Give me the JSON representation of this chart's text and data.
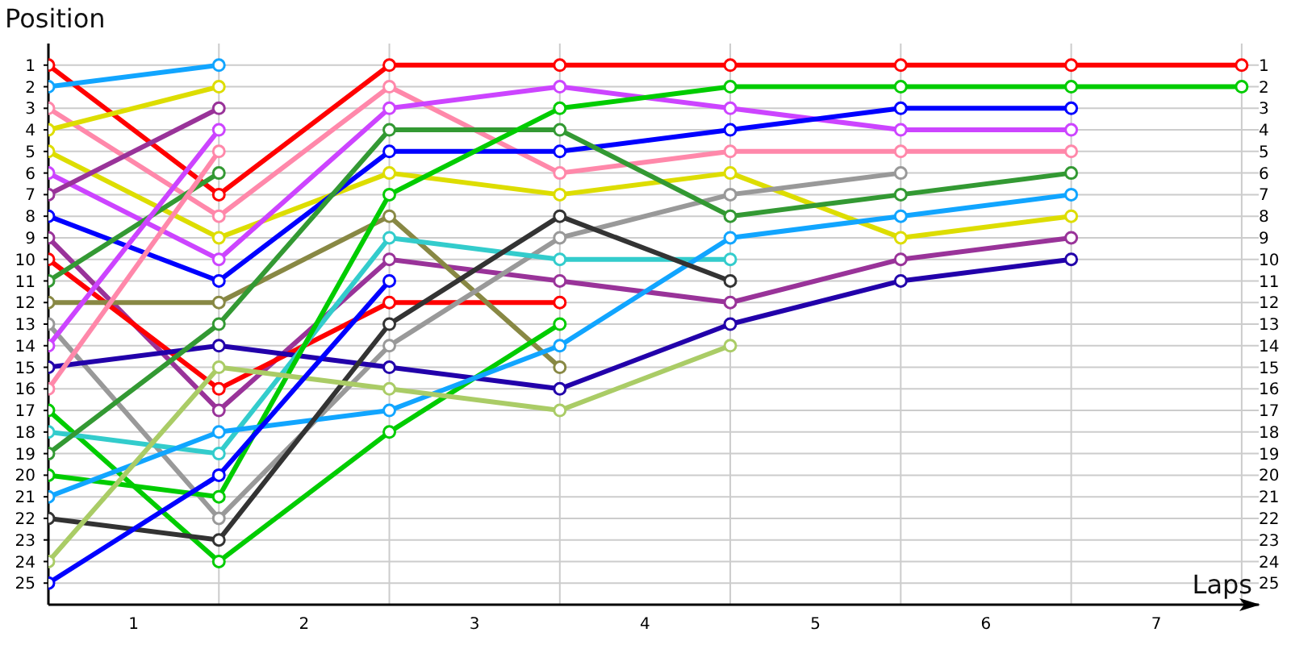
{
  "chart_data": {
    "type": "line",
    "ylabel": "Position",
    "xlabel": "Laps",
    "x": [
      0,
      1,
      2,
      3,
      4,
      5,
      6,
      7
    ],
    "xlim": [
      0,
      7.1
    ],
    "xticks": [
      {
        "value": 0,
        "label": null
      },
      {
        "value": 0.5,
        "label": "1"
      },
      {
        "value": 1,
        "label": null
      },
      {
        "value": 1.5,
        "label": "2"
      },
      {
        "value": 2,
        "label": null
      },
      {
        "value": 2.5,
        "label": "3"
      },
      {
        "value": 3,
        "label": null
      },
      {
        "value": 3.5,
        "label": "4"
      },
      {
        "value": 4,
        "label": null
      },
      {
        "value": 4.5,
        "label": "5"
      },
      {
        "value": 5,
        "label": null
      },
      {
        "value": 5.5,
        "label": "6"
      },
      {
        "value": 6,
        "label": null
      },
      {
        "value": 6.5,
        "label": "7"
      },
      {
        "value": 7,
        "label": null
      }
    ],
    "ylim": [
      26,
      0
    ],
    "yticks": [
      1,
      2,
      3,
      4,
      5,
      6,
      7,
      8,
      9,
      10,
      11,
      12,
      13,
      14,
      15,
      16,
      17,
      18,
      19,
      20,
      21,
      22,
      23,
      24,
      25
    ],
    "y2lim": [
      26,
      0
    ],
    "y2ticks": [
      1,
      2,
      3,
      4,
      5,
      6,
      7,
      8,
      9,
      10,
      11,
      12,
      13,
      14,
      15,
      16,
      17,
      18,
      19,
      20,
      21,
      22,
      23,
      24,
      25
    ],
    "grid": true,
    "marker": "circle",
    "line_style": "solid",
    "series": [
      {
        "color": "#ff0000",
        "values": [
          1,
          7,
          1,
          1,
          1,
          1,
          1,
          1
        ]
      },
      {
        "color": "#11a5ff",
        "values": [
          2,
          1,
          null,
          null,
          null,
          null,
          null,
          null
        ]
      },
      {
        "color": "#ff88aa",
        "values": [
          3,
          8,
          2,
          6,
          5,
          5,
          5,
          null
        ]
      },
      {
        "color": "#dddd00",
        "values": [
          4,
          2,
          null,
          null,
          null,
          null,
          null,
          null
        ]
      },
      {
        "color": "#dddd00",
        "values": [
          5,
          9,
          6,
          7,
          6,
          9,
          8,
          null
        ]
      },
      {
        "color": "#cc44ff",
        "values": [
          6,
          10,
          3,
          2,
          3,
          4,
          4,
          null
        ]
      },
      {
        "color": "#993399",
        "values": [
          7,
          3,
          null,
          null,
          null,
          null,
          null,
          null
        ]
      },
      {
        "color": "#0000ff",
        "values": [
          8,
          11,
          5,
          5,
          4,
          3,
          3,
          null
        ]
      },
      {
        "color": "#993399",
        "values": [
          9,
          17,
          10,
          11,
          12,
          10,
          9,
          null
        ]
      },
      {
        "color": "#ff0000",
        "values": [
          10,
          16,
          12,
          12,
          null,
          null,
          null,
          null
        ]
      },
      {
        "color": "#339933",
        "values": [
          11,
          6,
          null,
          null,
          null,
          null,
          null,
          null
        ]
      },
      {
        "color": "#888844",
        "values": [
          12,
          12,
          8,
          15,
          null,
          null,
          null,
          null
        ]
      },
      {
        "color": "#999999",
        "values": [
          13,
          22,
          14,
          9,
          7,
          6,
          null,
          null
        ]
      },
      {
        "color": "#cc44ff",
        "values": [
          14,
          4,
          null,
          null,
          null,
          null,
          null,
          null
        ]
      },
      {
        "color": "#2200aa",
        "values": [
          15,
          14,
          15,
          16,
          13,
          11,
          10,
          null
        ]
      },
      {
        "color": "#ff88aa",
        "values": [
          16,
          5,
          null,
          null,
          null,
          null,
          null,
          null
        ]
      },
      {
        "color": "#00cc00",
        "values": [
          17,
          24,
          18,
          13,
          null,
          null,
          null,
          null
        ]
      },
      {
        "color": "#33cccc",
        "values": [
          18,
          19,
          9,
          10,
          10,
          null,
          null,
          null
        ]
      },
      {
        "color": "#339933",
        "values": [
          19,
          13,
          4,
          4,
          8,
          7,
          6,
          null
        ]
      },
      {
        "color": "#00cc00",
        "values": [
          20,
          21,
          7,
          3,
          2,
          2,
          2,
          2
        ]
      },
      {
        "color": "#11a5ff",
        "values": [
          21,
          18,
          17,
          14,
          9,
          8,
          7,
          null
        ]
      },
      {
        "color": "#333333",
        "values": [
          22,
          23,
          13,
          8,
          11,
          null,
          null,
          null
        ]
      },
      {
        "color": "#aacc66",
        "values": [
          24,
          15,
          16,
          17,
          14,
          null,
          null,
          null
        ]
      },
      {
        "color": "#0000ff",
        "values": [
          25,
          20,
          11,
          null,
          null,
          null,
          null,
          null
        ]
      }
    ]
  }
}
